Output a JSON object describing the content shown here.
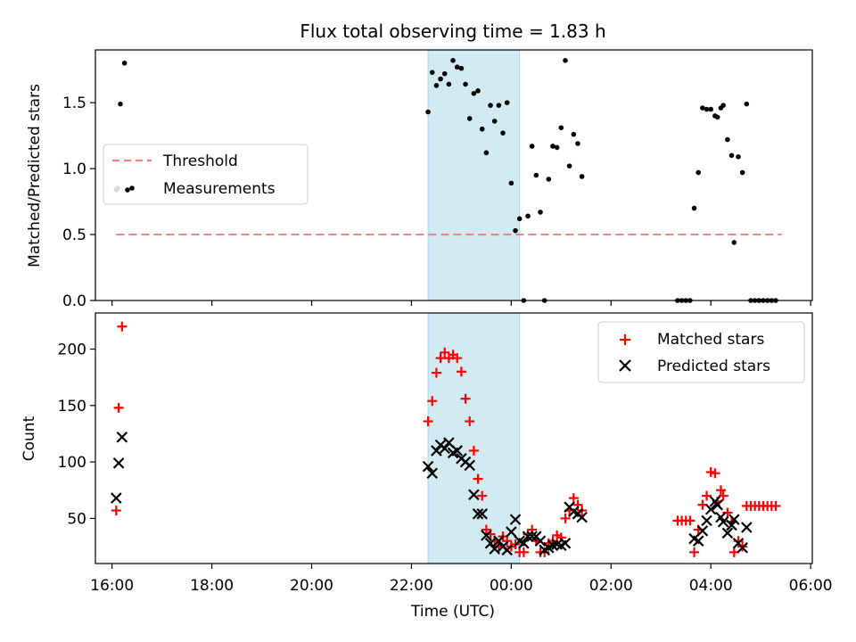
{
  "chart_data": [
    {
      "type": "scatter",
      "title": "Flux total observing time = 1.83 h",
      "ylabel": "Matched/Predicted stars",
      "xlabel": "",
      "ylim": [
        0,
        1.9
      ],
      "yticks": [
        "0.0",
        "0.5",
        "1.0",
        "1.5"
      ],
      "grid": false,
      "legend_position": "center-left",
      "highlight_band": {
        "from": "22:20",
        "to": "00:10",
        "color": "#add8e6"
      },
      "threshold": {
        "name": "Threshold",
        "value": 0.5,
        "from": "16:05",
        "to": "05:25",
        "color": "#ff7f7f",
        "style": "dashed"
      },
      "series": [
        {
          "name": "Measurements",
          "color": "#000000",
          "marker": "dot",
          "points": [
            [
              "16:05",
              0.84
            ],
            [
              "16:07",
              0.85
            ],
            [
              "16:10",
              1.49
            ],
            [
              "16:15",
              1.8
            ],
            [
              "22:20",
              1.43
            ],
            [
              "22:25",
              1.73
            ],
            [
              "22:30",
              1.63
            ],
            [
              "22:35",
              1.68
            ],
            [
              "22:40",
              1.72
            ],
            [
              "22:45",
              1.64
            ],
            [
              "22:50",
              1.82
            ],
            [
              "22:55",
              1.77
            ],
            [
              "23:00",
              1.76
            ],
            [
              "23:05",
              1.64
            ],
            [
              "23:10",
              1.38
            ],
            [
              "23:15",
              1.57
            ],
            [
              "23:20",
              1.59
            ],
            [
              "23:25",
              1.3
            ],
            [
              "23:30",
              1.12
            ],
            [
              "23:35",
              1.48
            ],
            [
              "23:40",
              1.36
            ],
            [
              "23:45",
              1.48
            ],
            [
              "23:50",
              1.27
            ],
            [
              "23:55",
              1.5
            ],
            [
              "00:00",
              0.89
            ],
            [
              "00:05",
              0.53
            ],
            [
              "00:10",
              0.62
            ],
            [
              "00:15",
              0.0
            ],
            [
              "00:20",
              0.64
            ],
            [
              "00:25",
              1.17
            ],
            [
              "00:30",
              0.95
            ],
            [
              "00:35",
              0.67
            ],
            [
              "00:40",
              0.0
            ],
            [
              "00:45",
              0.92
            ],
            [
              "00:50",
              1.17
            ],
            [
              "00:55",
              1.16
            ],
            [
              "01:00",
              1.31
            ],
            [
              "01:05",
              1.82
            ],
            [
              "01:10",
              1.02
            ],
            [
              "01:15",
              1.26
            ],
            [
              "01:20",
              1.19
            ],
            [
              "01:25",
              0.94
            ],
            [
              "03:20",
              0.0
            ],
            [
              "03:25",
              0.0
            ],
            [
              "03:30",
              0.0
            ],
            [
              "03:35",
              0.0
            ],
            [
              "03:40",
              0.7
            ],
            [
              "03:45",
              0.97
            ],
            [
              "03:50",
              1.46
            ],
            [
              "03:55",
              1.45
            ],
            [
              "04:00",
              1.45
            ],
            [
              "04:05",
              1.4
            ],
            [
              "04:08",
              1.39
            ],
            [
              "04:12",
              1.46
            ],
            [
              "04:15",
              1.48
            ],
            [
              "04:20",
              1.22
            ],
            [
              "04:25",
              1.1
            ],
            [
              "04:28",
              0.44
            ],
            [
              "04:33",
              1.09
            ],
            [
              "04:38",
              0.97
            ],
            [
              "04:43",
              1.49
            ],
            [
              "04:48",
              0.0
            ],
            [
              "04:53",
              0.0
            ],
            [
              "04:58",
              0.0
            ],
            [
              "05:03",
              0.0
            ],
            [
              "05:08",
              0.0
            ],
            [
              "05:13",
              0.0
            ],
            [
              "05:18",
              0.0
            ]
          ]
        }
      ]
    },
    {
      "type": "scatter",
      "title": "",
      "xlabel": "Time (UTC)",
      "ylabel": "Count",
      "ylim": [
        10,
        232
      ],
      "yticks": [
        "50",
        "100",
        "150",
        "200"
      ],
      "xlim": [
        "15:40",
        "06:02"
      ],
      "xticks": [
        "16:00",
        "18:00",
        "20:00",
        "22:00",
        "00:00",
        "02:00",
        "04:00",
        "06:00"
      ],
      "grid": false,
      "legend_position": "top-right",
      "highlight_band": {
        "from": "22:20",
        "to": "00:10",
        "color": "#add8e6"
      },
      "series": [
        {
          "name": "Matched stars",
          "color": "#ff0000",
          "marker": "plus",
          "points": [
            [
              "16:05",
              57
            ],
            [
              "16:08",
              148
            ],
            [
              "16:12",
              220
            ],
            [
              "22:20",
              136
            ],
            [
              "22:25",
              154
            ],
            [
              "22:30",
              179
            ],
            [
              "22:35",
              192
            ],
            [
              "22:40",
              197
            ],
            [
              "22:45",
              192
            ],
            [
              "22:50",
              195
            ],
            [
              "22:55",
              192
            ],
            [
              "23:00",
              180
            ],
            [
              "23:05",
              156
            ],
            [
              "23:10",
              136
            ],
            [
              "23:15",
              110
            ],
            [
              "23:20",
              85
            ],
            [
              "23:25",
              70
            ],
            [
              "23:30",
              40
            ],
            [
              "23:35",
              36
            ],
            [
              "23:40",
              30
            ],
            [
              "23:45",
              25
            ],
            [
              "23:50",
              34
            ],
            [
              "23:55",
              30
            ],
            [
              "00:00",
              25
            ],
            [
              "00:05",
              27
            ],
            [
              "00:10",
              20
            ],
            [
              "00:15",
              20
            ],
            [
              "00:20",
              36
            ],
            [
              "00:25",
              40
            ],
            [
              "00:30",
              30
            ],
            [
              "00:35",
              20
            ],
            [
              "00:40",
              20
            ],
            [
              "00:45",
              28
            ],
            [
              "00:50",
              30
            ],
            [
              "00:55",
              35
            ],
            [
              "01:00",
              33
            ],
            [
              "01:05",
              50
            ],
            [
              "01:10",
              57
            ],
            [
              "01:15",
              68
            ],
            [
              "01:20",
              62
            ],
            [
              "01:25",
              57
            ],
            [
              "03:20",
              48
            ],
            [
              "03:25",
              48
            ],
            [
              "03:30",
              48
            ],
            [
              "03:35",
              48
            ],
            [
              "03:40",
              20
            ],
            [
              "03:45",
              40
            ],
            [
              "03:50",
              62
            ],
            [
              "03:55",
              70
            ],
            [
              "04:00",
              91
            ],
            [
              "04:05",
              90
            ],
            [
              "04:08",
              65
            ],
            [
              "04:12",
              75
            ],
            [
              "04:15",
              70
            ],
            [
              "04:20",
              55
            ],
            [
              "04:25",
              47
            ],
            [
              "04:28",
              20
            ],
            [
              "04:33",
              30
            ],
            [
              "04:38",
              25
            ],
            [
              "04:43",
              61
            ],
            [
              "04:48",
              61
            ],
            [
              "04:53",
              61
            ],
            [
              "04:58",
              61
            ],
            [
              "05:03",
              61
            ],
            [
              "05:08",
              61
            ],
            [
              "05:13",
              61
            ],
            [
              "05:18",
              61
            ]
          ]
        },
        {
          "name": "Predicted stars",
          "color": "#000000",
          "marker": "x",
          "points": [
            [
              "16:05",
              68
            ],
            [
              "16:08",
              99
            ],
            [
              "16:12",
              122
            ],
            [
              "22:20",
              96
            ],
            [
              "22:25",
              90
            ],
            [
              "22:30",
              110
            ],
            [
              "22:35",
              115
            ],
            [
              "22:40",
              112
            ],
            [
              "22:45",
              117
            ],
            [
              "22:50",
              108
            ],
            [
              "22:55",
              110
            ],
            [
              "23:00",
              103
            ],
            [
              "23:05",
              100
            ],
            [
              "23:10",
              97
            ],
            [
              "23:15",
              71
            ],
            [
              "23:20",
              54
            ],
            [
              "23:25",
              54
            ],
            [
              "23:30",
              35
            ],
            [
              "23:35",
              28
            ],
            [
              "23:40",
              23
            ],
            [
              "23:45",
              30
            ],
            [
              "23:50",
              25
            ],
            [
              "23:55",
              22
            ],
            [
              "00:00",
              38
            ],
            [
              "00:05",
              49
            ],
            [
              "00:10",
              30
            ],
            [
              "00:15",
              28
            ],
            [
              "00:20",
              34
            ],
            [
              "00:25",
              34
            ],
            [
              "00:30",
              34
            ],
            [
              "00:35",
              30
            ],
            [
              "00:40",
              22
            ],
            [
              "00:45",
              24
            ],
            [
              "00:50",
              26
            ],
            [
              "00:55",
              27
            ],
            [
              "01:00",
              26
            ],
            [
              "01:05",
              28
            ],
            [
              "01:10",
              60
            ],
            [
              "01:15",
              56
            ],
            [
              "01:20",
              54
            ],
            [
              "01:25",
              51
            ],
            [
              "03:40",
              32
            ],
            [
              "03:45",
              30
            ],
            [
              "03:50",
              39
            ],
            [
              "03:55",
              48
            ],
            [
              "04:00",
              58
            ],
            [
              "04:05",
              65
            ],
            [
              "04:08",
              62
            ],
            [
              "04:12",
              51
            ],
            [
              "04:15",
              47
            ],
            [
              "04:20",
              37
            ],
            [
              "04:25",
              44
            ],
            [
              "04:28",
              49
            ],
            [
              "04:33",
              28
            ],
            [
              "04:38",
              24
            ],
            [
              "04:43",
              42
            ]
          ]
        }
      ]
    }
  ]
}
